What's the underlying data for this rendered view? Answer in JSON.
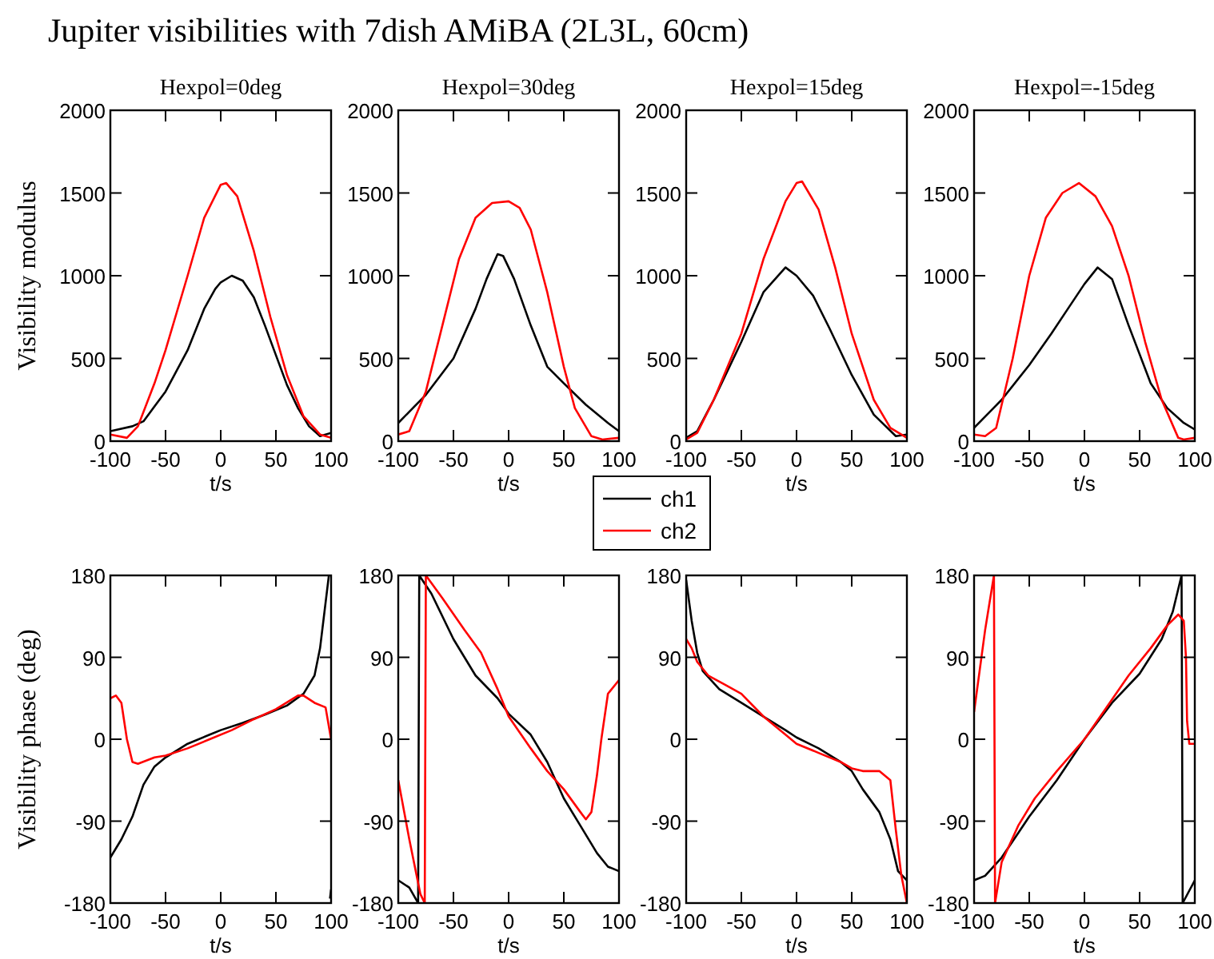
{
  "chart_data": [
    {
      "type": "line",
      "title": "Hexpol=0deg",
      "xlabel": "t/s",
      "ylabel": "Visibility modulus",
      "annotations": [
        "Jupiter visibilities with 7dish AMiBA (2L3L, 60cm)"
      ],
      "xlim": [
        -100,
        100
      ],
      "xticks": [
        -100,
        -50,
        0,
        50,
        100
      ],
      "ylim": [
        0,
        2000
      ],
      "yticks": [
        0,
        500,
        1000,
        1500,
        2000
      ],
      "series": [
        {
          "color": "#000000",
          "x": [
            -100,
            -80,
            -70,
            -50,
            -30,
            -15,
            -5,
            0,
            10,
            20,
            30,
            40,
            50,
            60,
            70,
            80,
            90,
            100
          ],
          "values": [
            60,
            90,
            120,
            300,
            550,
            800,
            920,
            960,
            1000,
            970,
            870,
            700,
            520,
            340,
            200,
            90,
            30,
            50
          ]
        },
        {
          "color": "#ff0000",
          "x": [
            -100,
            -85,
            -75,
            -60,
            -50,
            -30,
            -15,
            0,
            5,
            15,
            30,
            45,
            60,
            75,
            90,
            100
          ],
          "values": [
            40,
            20,
            90,
            350,
            550,
            1000,
            1350,
            1550,
            1560,
            1480,
            1150,
            750,
            400,
            150,
            40,
            20
          ]
        }
      ]
    },
    {
      "type": "line",
      "title": "Hexpol=30deg",
      "xlabel": "t/s",
      "legend": "bottom right",
      "xlim": [
        -100,
        100
      ],
      "xticks": [
        -100,
        -50,
        0,
        50,
        100
      ],
      "ylim": [
        0,
        2000
      ],
      "yticks": [
        0,
        500,
        1000,
        1500,
        2000
      ],
      "series": [
        {
          "name": "ch1",
          "color": "#000000",
          "x": [
            -100,
            -75,
            -50,
            -30,
            -20,
            -10,
            -5,
            5,
            20,
            35,
            50,
            70,
            90,
            100
          ],
          "values": [
            110,
            280,
            500,
            800,
            980,
            1130,
            1120,
            980,
            700,
            450,
            350,
            220,
            110,
            60
          ]
        },
        {
          "name": "ch2",
          "color": "#ff0000",
          "x": [
            -100,
            -90,
            -75,
            -60,
            -45,
            -30,
            -15,
            0,
            10,
            20,
            35,
            50,
            60,
            75,
            85,
            100
          ],
          "values": [
            40,
            60,
            300,
            700,
            1100,
            1350,
            1440,
            1450,
            1410,
            1280,
            900,
            450,
            200,
            30,
            10,
            20
          ]
        }
      ]
    },
    {
      "type": "line",
      "title": "Hexpol=15deg",
      "xlabel": "t/s",
      "xlim": [
        -100,
        100
      ],
      "xticks": [
        -100,
        -50,
        0,
        50,
        100
      ],
      "ylim": [
        0,
        2000
      ],
      "yticks": [
        0,
        500,
        1000,
        1500,
        2000
      ],
      "series": [
        {
          "color": "#000000",
          "x": [
            -100,
            -90,
            -75,
            -50,
            -30,
            -10,
            0,
            15,
            30,
            50,
            70,
            90,
            100
          ],
          "values": [
            20,
            60,
            250,
            600,
            900,
            1050,
            1000,
            880,
            680,
            400,
            160,
            30,
            40
          ]
        },
        {
          "color": "#ff0000",
          "x": [
            -100,
            -90,
            -75,
            -50,
            -30,
            -10,
            0,
            5,
            20,
            35,
            50,
            70,
            85,
            100
          ],
          "values": [
            10,
            50,
            250,
            650,
            1100,
            1450,
            1560,
            1570,
            1400,
            1050,
            650,
            250,
            80,
            20
          ]
        }
      ]
    },
    {
      "type": "line",
      "title": "Hexpol=-15deg",
      "xlabel": "t/s",
      "xlim": [
        -100,
        100
      ],
      "xticks": [
        -100,
        -50,
        0,
        50,
        100
      ],
      "ylim": [
        0,
        2000
      ],
      "yticks": [
        0,
        500,
        1000,
        1500,
        2000
      ],
      "series": [
        {
          "color": "#000000",
          "x": [
            -100,
            -75,
            -50,
            -30,
            -15,
            0,
            12,
            25,
            40,
            60,
            75,
            90,
            100
          ],
          "values": [
            80,
            250,
            460,
            650,
            800,
            950,
            1050,
            980,
            700,
            350,
            200,
            110,
            70
          ]
        },
        {
          "color": "#ff0000",
          "x": [
            -100,
            -90,
            -80,
            -65,
            -50,
            -35,
            -20,
            -5,
            10,
            25,
            40,
            55,
            70,
            85,
            90,
            100
          ],
          "values": [
            40,
            30,
            80,
            500,
            1000,
            1350,
            1500,
            1560,
            1480,
            1300,
            1000,
            600,
            250,
            20,
            10,
            20
          ]
        }
      ]
    },
    {
      "type": "line",
      "xlabel": "t/s",
      "ylabel": "Visibility phase (deg)",
      "xlim": [
        -100,
        100
      ],
      "xticks": [
        -100,
        -50,
        0,
        50,
        100
      ],
      "ylim": [
        -180,
        180
      ],
      "yticks": [
        -180,
        -90,
        0,
        90,
        180
      ],
      "series": [
        {
          "color": "#000000",
          "x": [
            -100,
            -90,
            -80,
            -70,
            -60,
            -50,
            -30,
            -10,
            0,
            20,
            40,
            60,
            75,
            85,
            90,
            95,
            98,
            98.5,
            99,
            100
          ],
          "values": [
            -130,
            -110,
            -85,
            -50,
            -30,
            -20,
            -5,
            5,
            10,
            18,
            27,
            37,
            50,
            70,
            100,
            150,
            180,
            null,
            -175,
            -165
          ]
        },
        {
          "color": "#ff0000",
          "x": [
            -100,
            -95,
            -90,
            -85,
            -80,
            -75,
            -60,
            -50,
            -30,
            -10,
            10,
            30,
            50,
            70,
            75,
            85,
            95,
            100
          ],
          "values": [
            45,
            48,
            40,
            0,
            -25,
            -27,
            -20,
            -18,
            -10,
            0,
            10,
            22,
            33,
            48,
            48,
            40,
            35,
            0
          ]
        }
      ]
    },
    {
      "type": "line",
      "xlabel": "t/s",
      "xlim": [
        -100,
        100
      ],
      "xticks": [
        -100,
        -50,
        0,
        50,
        100
      ],
      "ylim": [
        -180,
        180
      ],
      "yticks": [
        -180,
        -90,
        0,
        90,
        180
      ],
      "series": [
        {
          "color": "#000000",
          "x": [
            -100,
            -90,
            -82,
            -81,
            -70,
            -50,
            -30,
            -10,
            0,
            20,
            35,
            50,
            65,
            80,
            90,
            100
          ],
          "values": [
            -155,
            -163,
            -180,
            180,
            160,
            110,
            70,
            45,
            28,
            5,
            -25,
            -65,
            -95,
            -125,
            -140,
            -145
          ]
        },
        {
          "color": "#ff0000",
          "x": [
            -100,
            -90,
            -80,
            -76,
            -75,
            -60,
            -40,
            -25,
            -10,
            0,
            20,
            35,
            50,
            65,
            70,
            75,
            80,
            84,
            90,
            100
          ],
          "values": [
            -45,
            -110,
            -170,
            -180,
            180,
            155,
            120,
            95,
            55,
            25,
            -10,
            -35,
            -55,
            -80,
            -88,
            -80,
            -40,
            0,
            50,
            65
          ]
        }
      ]
    },
    {
      "type": "line",
      "xlabel": "t/s",
      "xlim": [
        -100,
        100
      ],
      "xticks": [
        -100,
        -50,
        0,
        50,
        100
      ],
      "ylim": [
        -180,
        180
      ],
      "yticks": [
        -180,
        -90,
        0,
        90,
        180
      ],
      "series": [
        {
          "color": "#000000",
          "x": [
            -100,
            -95,
            -90,
            -85,
            -70,
            -50,
            -30,
            -10,
            0,
            20,
            40,
            50,
            60,
            75,
            85,
            92,
            100
          ],
          "values": [
            175,
            130,
            95,
            75,
            55,
            40,
            25,
            10,
            2,
            -10,
            -25,
            -35,
            -55,
            -80,
            -110,
            -145,
            -155
          ]
        },
        {
          "color": "#ff0000",
          "x": [
            -100,
            -95,
            -90,
            -80,
            -65,
            -50,
            -30,
            -10,
            0,
            20,
            40,
            50,
            60,
            75,
            85,
            90,
            95,
            100
          ],
          "values": [
            110,
            100,
            85,
            70,
            60,
            50,
            25,
            5,
            -5,
            -15,
            -25,
            -32,
            -35,
            -35,
            -45,
            -100,
            -150,
            -180
          ]
        }
      ]
    },
    {
      "type": "line",
      "xlabel": "t/s",
      "xlim": [
        -100,
        100
      ],
      "xticks": [
        -100,
        -50,
        0,
        50,
        100
      ],
      "ylim": [
        -180,
        180
      ],
      "yticks": [
        -180,
        -90,
        0,
        90,
        180
      ],
      "series": [
        {
          "color": "#000000",
          "x": [
            -100,
            -90,
            -75,
            -50,
            -25,
            0,
            25,
            50,
            70,
            80,
            88,
            89,
            100
          ],
          "values": [
            -155,
            -150,
            -130,
            -85,
            -45,
            0,
            40,
            72,
            110,
            140,
            180,
            -180,
            -155
          ]
        },
        {
          "color": "#ff0000",
          "x": [
            -100,
            -90,
            -82,
            -81,
            -75,
            -60,
            -45,
            -25,
            0,
            20,
            40,
            60,
            75,
            85,
            90,
            92,
            93,
            95,
            100
          ],
          "values": [
            30,
            120,
            180,
            -180,
            -135,
            -95,
            -65,
            -35,
            0,
            35,
            70,
            100,
            125,
            137,
            130,
            90,
            20,
            -5,
            -5
          ]
        }
      ]
    }
  ]
}
